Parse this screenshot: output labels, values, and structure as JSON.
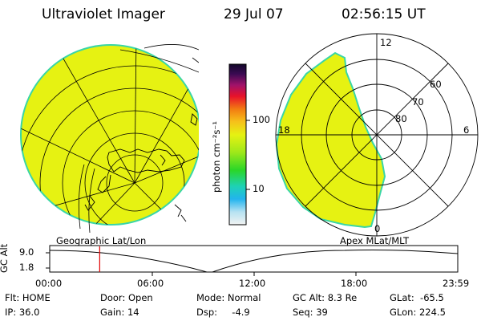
{
  "header": {
    "title": "Ultraviolet Imager",
    "date": "29 Jul 07",
    "time": "02:56:15 UT"
  },
  "colors": {
    "image_fill": "#e6f212",
    "image_edge": "#39d6a6",
    "grid_line": "#000000",
    "marker": "#e00000"
  },
  "colorbar": {
    "unit_label": "photon cm⁻²s⁻¹",
    "ticks": [
      "100",
      "10"
    ],
    "scale": "log"
  },
  "polar_plot": {
    "lat_labels": [
      "60",
      "70",
      "80"
    ],
    "mlt_labels": {
      "top": "12",
      "left": "18",
      "right": "6",
      "bottom": "0"
    }
  },
  "map_labels": {
    "left": "Geographic Lat/Lon",
    "right": "Apex MLat/MLT"
  },
  "altitude_strip": {
    "axis_label": "GC Alt",
    "y_ticks": [
      "9.0",
      "1.8"
    ],
    "x_ticks": [
      "00:00",
      "06:00",
      "12:00",
      "18:00",
      "23:59"
    ],
    "current_time_hours": 2.94
  },
  "info": {
    "flt": "Flt: HOME",
    "ip": "IP: 36.0",
    "door": "Door: Open",
    "gain": "Gain: 14",
    "mode": "Mode: Normal",
    "dsp": "Dsp:     -4.9",
    "gc_alt": "GC Alt: 8.3 Re",
    "seq": "Seq: 39",
    "glat": "GLat:  -65.5",
    "glon": "GLon: 224.5"
  }
}
